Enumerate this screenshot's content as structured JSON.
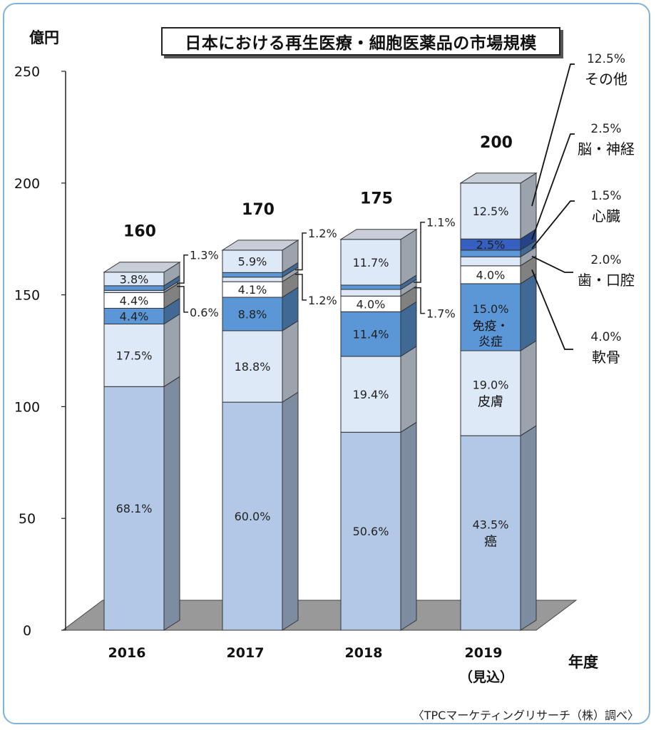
{
  "chart_data": {
    "type": "bar",
    "title": "日本における再生医療・細胞医薬品の市場規模",
    "ylabel": "億円",
    "xlabel": "年度",
    "ylim": [
      0,
      250
    ],
    "yticks": [
      "0",
      "50",
      "100",
      "150",
      "200",
      "250"
    ],
    "categories": [
      "2016",
      "2017",
      "2018",
      "2019"
    ],
    "category_sublabels": [
      "",
      "",
      "",
      "（見込）"
    ],
    "totals": [
      160,
      170,
      175,
      200
    ],
    "total_labels": [
      "160",
      "170",
      "175",
      "200"
    ],
    "series": [
      {
        "name": "癌",
        "color": "#b3c8e6",
        "values": [
          68.1,
          60.0,
          50.6,
          43.5
        ],
        "labels": [
          "68.1%",
          "60.0%",
          "50.6%",
          "43.5%"
        ]
      },
      {
        "name": "皮膚",
        "color": "#dde9f7",
        "values": [
          17.5,
          18.8,
          19.4,
          19.0
        ],
        "labels": [
          "17.5%",
          "18.8%",
          "19.4%",
          "19.0%"
        ]
      },
      {
        "name": "免疫・炎症",
        "color": "#5b96d6",
        "values": [
          4.4,
          8.8,
          11.4,
          15.0
        ],
        "labels": [
          "4.4%",
          "8.8%",
          "11.4%",
          "15.0%"
        ]
      },
      {
        "name": "軟骨",
        "color": "#ffffff",
        "values": [
          4.4,
          4.1,
          4.0,
          4.0
        ],
        "labels": [
          "4.4%",
          "4.1%",
          "4.0%",
          "4.0%"
        ]
      },
      {
        "name": "歯・口腔",
        "color": "#dde9f7",
        "values": [
          0.6,
          1.2,
          1.7,
          2.0
        ],
        "labels": [
          "0.6%",
          "1.2%",
          "1.7%",
          "2.0%"
        ]
      },
      {
        "name": "心臓",
        "color": "#5b96d6",
        "values": [
          1.3,
          1.2,
          1.1,
          1.5
        ],
        "labels": [
          "1.3%",
          "1.2%",
          "1.1%",
          "1.5%"
        ]
      },
      {
        "name": "脳・神経",
        "color": "#3560c0",
        "values": [
          0.0,
          0.0,
          0.0,
          2.5
        ],
        "labels": [
          "",
          "",
          "",
          "2.5%"
        ]
      },
      {
        "name": "その他",
        "color": "#dde9f7",
        "values": [
          3.8,
          5.9,
          11.7,
          12.5
        ],
        "labels": [
          "3.8%",
          "5.9%",
          "11.7%",
          "12.5%"
        ]
      }
    ],
    "legend_2019": [
      {
        "pct": "12.5%",
        "name": "その他"
      },
      {
        "pct": "2.5%",
        "name": "脳・神経"
      },
      {
        "pct": "1.5%",
        "name": "心臓"
      },
      {
        "pct": "2.0%",
        "name": "歯・口腔"
      },
      {
        "pct": "4.0%",
        "name": "軟骨"
      }
    ],
    "source": "〈TPCマーケティングリサーチ（株）調べ〉"
  }
}
